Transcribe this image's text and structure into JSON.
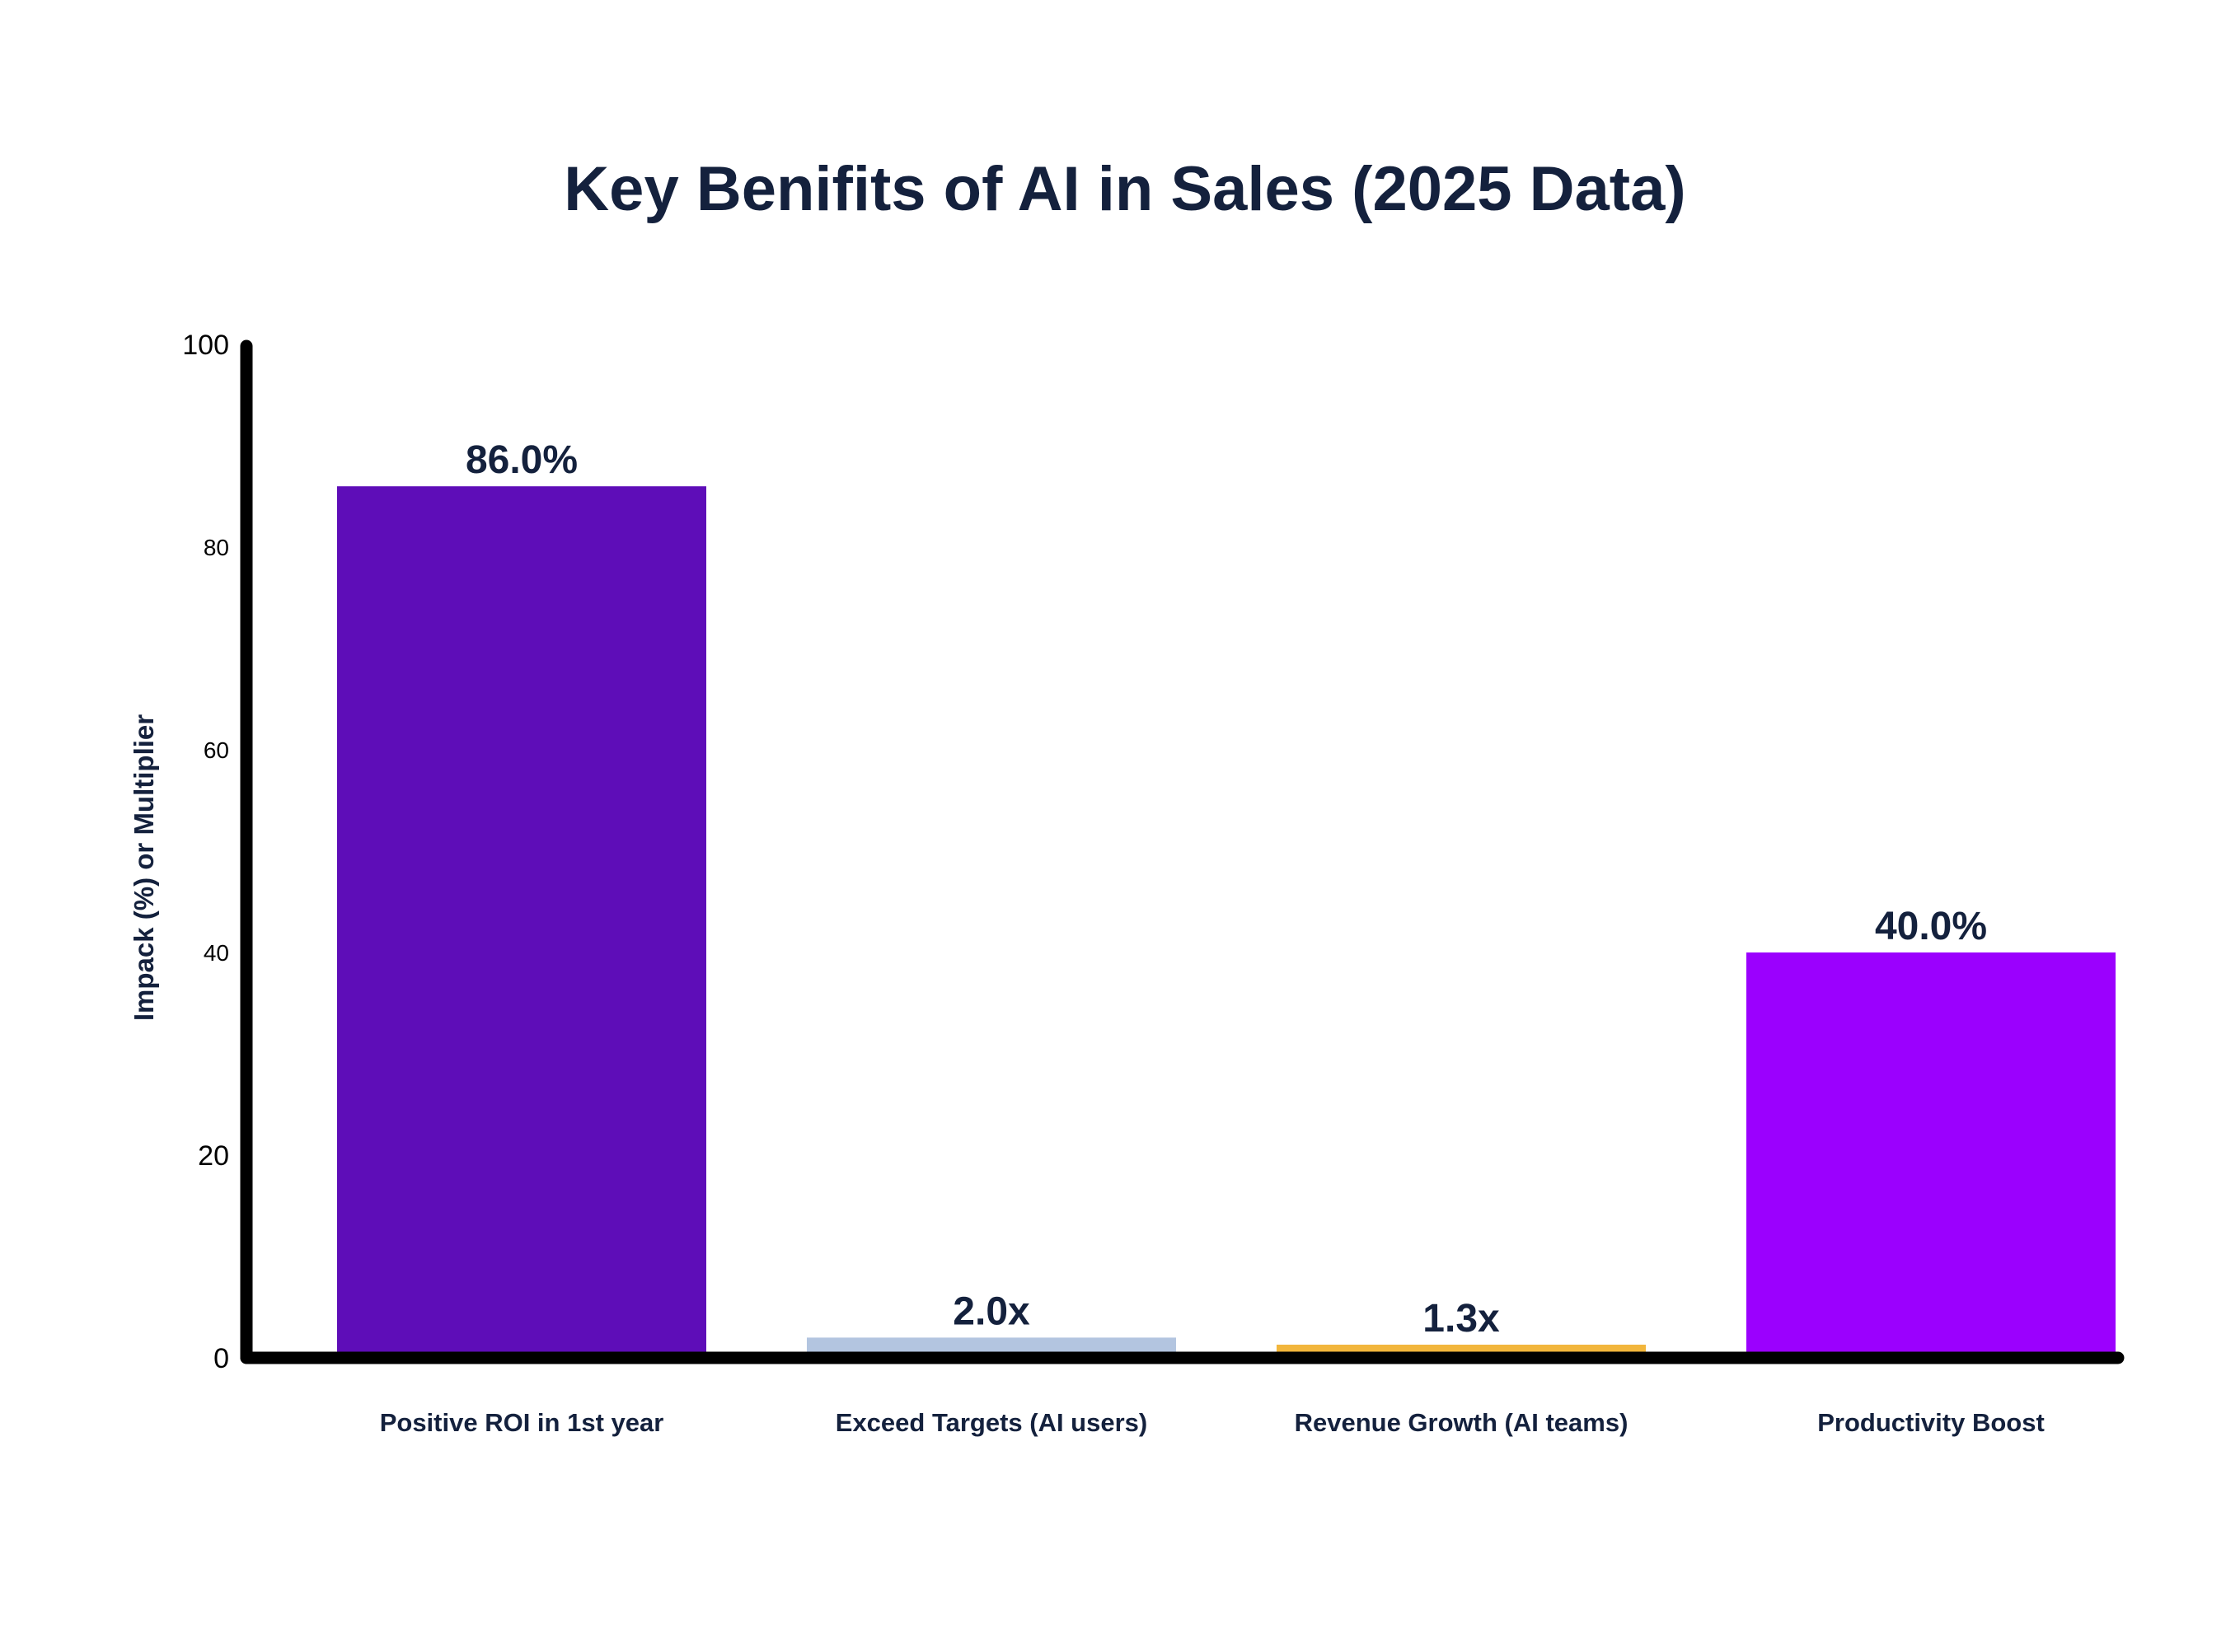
{
  "chart_data": {
    "type": "bar",
    "title": "Key Benifits of AI in Sales (2025 Data)",
    "xlabel": "",
    "ylabel": "Impack (%) or Multiplier",
    "ylim": [
      0,
      100
    ],
    "yticks": [
      "0",
      "20",
      "40",
      "60",
      "80",
      "100"
    ],
    "grid": false,
    "categories": [
      "Positive ROI in 1st year",
      "Exceed Targets (AI users)",
      "Revenue Growth (AI teams)",
      "Productivity Boost"
    ],
    "values": [
      86.0,
      2.0,
      1.3,
      40.0
    ],
    "data_labels": [
      "86.0%",
      "2.0x",
      "1.3x",
      "40.0%"
    ],
    "colors": [
      "#5e0db8",
      "#b3c5e0",
      "#f2b63c",
      "#9b00fe"
    ]
  }
}
